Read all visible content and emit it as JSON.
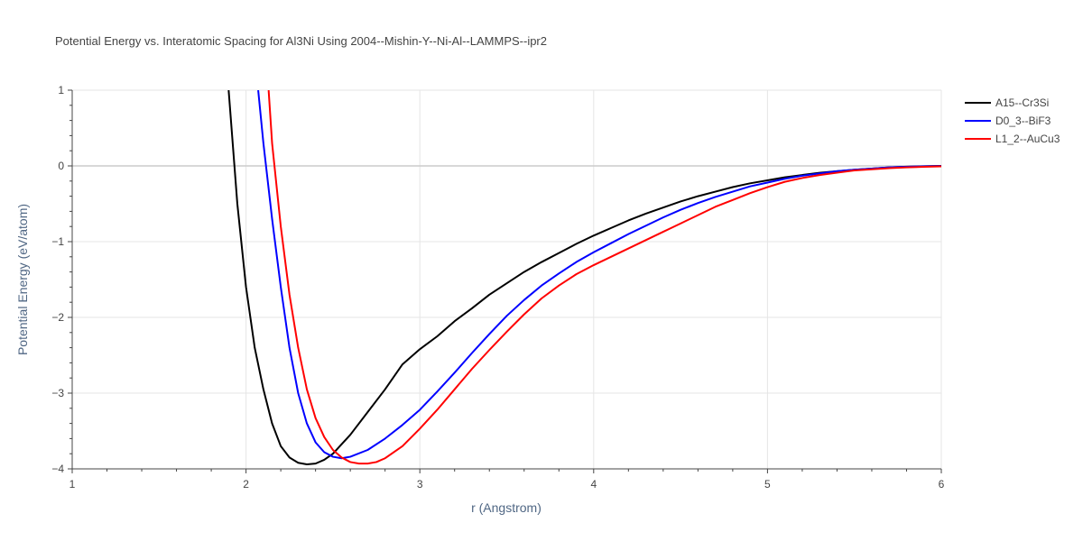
{
  "chart_data": {
    "type": "line",
    "title": "Potential Energy vs. Interatomic Spacing for Al3Ni Using 2004--Mishin-Y--Ni-Al--LAMMPS--ipr2",
    "xlabel": "r (Angstrom)",
    "ylabel": "Potential Energy (eV/atom)",
    "xlim": [
      1,
      6
    ],
    "ylim": [
      -4,
      1
    ],
    "x_ticks": [
      1,
      2,
      3,
      4,
      5,
      6
    ],
    "x_tick_labels": [
      "1",
      "2",
      "3",
      "4",
      "5",
      "6"
    ],
    "y_ticks": [
      1,
      0,
      -1,
      -2,
      -3,
      -4
    ],
    "y_tick_labels": [
      "1",
      "0",
      "−1",
      "−2",
      "−3",
      "−4"
    ],
    "grid": true,
    "legend_position": "top-right",
    "series": [
      {
        "name": "A15--Cr3Si",
        "color": "#000000",
        "x": [
          1.9,
          1.95,
          2.0,
          2.05,
          2.1,
          2.15,
          2.2,
          2.25,
          2.3,
          2.35,
          2.4,
          2.45,
          2.5,
          2.6,
          2.7,
          2.8,
          2.9,
          3.0,
          3.1,
          3.2,
          3.3,
          3.4,
          3.5,
          3.6,
          3.7,
          3.8,
          3.9,
          4.0,
          4.1,
          4.2,
          4.3,
          4.4,
          4.5,
          4.6,
          4.7,
          4.8,
          4.9,
          5.0,
          5.1,
          5.2,
          5.3,
          5.4,
          5.5,
          5.6,
          5.7,
          5.8,
          5.9,
          6.0
        ],
        "y": [
          1.0,
          -0.5,
          -1.6,
          -2.4,
          -2.95,
          -3.4,
          -3.7,
          -3.85,
          -3.92,
          -3.94,
          -3.93,
          -3.88,
          -3.8,
          -3.55,
          -3.25,
          -2.95,
          -2.62,
          -2.42,
          -2.25,
          -2.05,
          -1.88,
          -1.7,
          -1.55,
          -1.4,
          -1.27,
          -1.15,
          -1.03,
          -0.92,
          -0.82,
          -0.72,
          -0.63,
          -0.55,
          -0.47,
          -0.4,
          -0.34,
          -0.28,
          -0.23,
          -0.19,
          -0.15,
          -0.12,
          -0.09,
          -0.07,
          -0.05,
          -0.035,
          -0.02,
          -0.01,
          -0.005,
          0.0
        ]
      },
      {
        "name": "D0_3--BiF3",
        "color": "#0000ff",
        "x": [
          2.07,
          2.1,
          2.15,
          2.2,
          2.25,
          2.3,
          2.35,
          2.4,
          2.45,
          2.5,
          2.55,
          2.6,
          2.7,
          2.8,
          2.9,
          3.0,
          3.1,
          3.2,
          3.3,
          3.4,
          3.5,
          3.6,
          3.7,
          3.8,
          3.9,
          4.0,
          4.1,
          4.2,
          4.3,
          4.4,
          4.5,
          4.6,
          4.7,
          4.8,
          4.9,
          5.0,
          5.1,
          5.2,
          5.3,
          5.4,
          5.5,
          5.6,
          5.7,
          5.8,
          5.9,
          6.0
        ],
        "y": [
          1.0,
          0.3,
          -0.7,
          -1.6,
          -2.4,
          -3.0,
          -3.4,
          -3.65,
          -3.78,
          -3.84,
          -3.86,
          -3.84,
          -3.75,
          -3.6,
          -3.42,
          -3.22,
          -2.98,
          -2.73,
          -2.47,
          -2.22,
          -1.98,
          -1.77,
          -1.58,
          -1.42,
          -1.27,
          -1.14,
          -1.02,
          -0.9,
          -0.79,
          -0.68,
          -0.58,
          -0.49,
          -0.41,
          -0.34,
          -0.27,
          -0.22,
          -0.17,
          -0.13,
          -0.1,
          -0.07,
          -0.05,
          -0.035,
          -0.02,
          -0.012,
          -0.006,
          -0.002
        ]
      },
      {
        "name": "L1_2--AuCu3",
        "color": "#ff0000",
        "x": [
          2.13,
          2.15,
          2.2,
          2.25,
          2.3,
          2.35,
          2.4,
          2.45,
          2.5,
          2.55,
          2.6,
          2.65,
          2.7,
          2.75,
          2.8,
          2.9,
          3.0,
          3.1,
          3.2,
          3.3,
          3.4,
          3.5,
          3.6,
          3.7,
          3.8,
          3.9,
          4.0,
          4.1,
          4.2,
          4.3,
          4.4,
          4.5,
          4.6,
          4.7,
          4.8,
          4.9,
          5.0,
          5.1,
          5.2,
          5.3,
          5.4,
          5.5,
          5.6,
          5.7,
          5.8,
          5.9,
          6.0
        ],
        "y": [
          1.0,
          0.3,
          -0.8,
          -1.7,
          -2.4,
          -2.95,
          -3.33,
          -3.58,
          -3.75,
          -3.85,
          -3.91,
          -3.93,
          -3.93,
          -3.91,
          -3.86,
          -3.7,
          -3.47,
          -3.22,
          -2.95,
          -2.68,
          -2.43,
          -2.19,
          -1.96,
          -1.75,
          -1.58,
          -1.43,
          -1.31,
          -1.2,
          -1.09,
          -0.98,
          -0.87,
          -0.76,
          -0.65,
          -0.54,
          -0.45,
          -0.36,
          -0.28,
          -0.21,
          -0.16,
          -0.12,
          -0.09,
          -0.06,
          -0.045,
          -0.03,
          -0.02,
          -0.012,
          -0.006
        ]
      }
    ]
  }
}
